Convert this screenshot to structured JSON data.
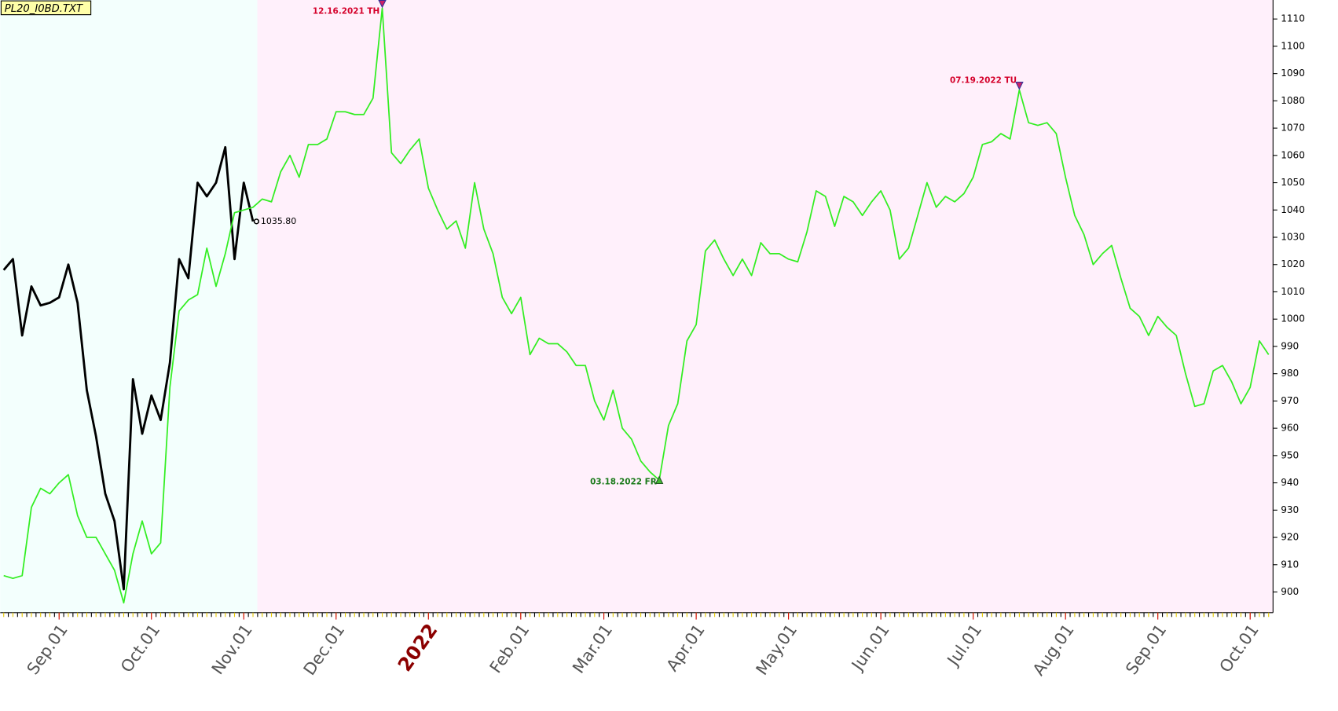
{
  "chart_data": {
    "type": "line",
    "title": "PL20_I0BD.TXT",
    "categories": [
      null,
      null,
      null,
      null,
      null,
      null,
      "Sep.01",
      null,
      null,
      null,
      null,
      null,
      null,
      null,
      null,
      null,
      "Oct.01",
      null,
      null,
      null,
      null,
      null,
      null,
      null,
      null,
      null,
      "Nov.01",
      null,
      null,
      null,
      null,
      null,
      null,
      null,
      null,
      null,
      "Dec.01",
      null,
      null,
      null,
      null,
      null,
      null,
      null,
      null,
      null,
      "2022",
      null,
      null,
      null,
      null,
      null,
      null,
      null,
      null,
      null,
      "Feb.01",
      null,
      null,
      null,
      null,
      null,
      null,
      null,
      null,
      "Mar.01",
      null,
      null,
      null,
      null,
      null,
      null,
      null,
      null,
      null,
      "Apr.01",
      null,
      null,
      null,
      null,
      null,
      null,
      null,
      null,
      null,
      "May.01",
      null,
      null,
      null,
      null,
      null,
      null,
      null,
      null,
      null,
      "Jun.01",
      null,
      null,
      null,
      null,
      null,
      null,
      null,
      null,
      null,
      "Jul.01",
      null,
      null,
      null,
      null,
      null,
      null,
      null,
      null,
      null,
      "Aug.01",
      null,
      null,
      null,
      null,
      null,
      null,
      null,
      null,
      null,
      "Sep.01",
      null,
      null,
      null,
      null,
      null,
      null,
      null,
      null,
      null,
      "Oct.01",
      null,
      null
    ],
    "year_label_color": "#8b0000",
    "series": [
      {
        "color": "#000000",
        "values": [
          1018,
          1022,
          994,
          1012,
          1005,
          1006,
          1008,
          1020,
          1006,
          974,
          957,
          936,
          926,
          901,
          978,
          958,
          972,
          963,
          984,
          1022,
          1015,
          1050,
          1045,
          1050,
          1063,
          1022,
          1050,
          1035.8,
          null,
          null,
          null,
          null,
          null,
          null,
          null,
          null,
          null,
          null,
          null,
          null,
          null,
          null,
          null,
          null,
          null,
          null,
          null,
          null,
          null,
          null,
          null,
          null,
          null,
          null,
          null,
          null,
          null,
          null,
          null,
          null,
          null,
          null,
          null,
          null,
          null,
          null,
          null,
          null,
          null,
          null,
          null,
          null,
          null,
          null,
          null,
          null,
          null,
          null,
          null,
          null,
          null,
          null,
          null,
          null,
          null,
          null,
          null,
          null,
          null,
          null,
          null,
          null,
          null,
          null,
          null,
          null,
          null,
          null,
          null,
          null,
          null,
          null,
          null,
          null,
          null,
          null,
          null,
          null,
          null,
          null,
          null,
          null,
          null,
          null,
          null,
          null,
          null,
          null,
          null,
          null,
          null,
          null,
          null,
          null,
          null,
          null,
          null,
          null,
          null,
          null,
          null,
          null,
          null,
          null,
          null,
          null,
          null,
          null
        ],
        "value_labels": [
          null,
          null,
          null,
          null,
          null,
          null,
          null,
          null,
          null,
          null,
          null,
          null,
          null,
          null,
          null,
          null,
          null,
          null,
          null,
          null,
          null,
          null,
          null,
          null,
          null,
          null,
          null,
          "1035.80",
          null,
          null,
          null,
          null,
          null,
          null,
          null,
          null,
          null,
          null,
          null,
          null,
          null,
          null,
          null,
          null,
          null,
          null,
          null,
          null,
          null,
          null,
          null,
          null,
          null,
          null,
          null,
          null,
          null,
          null,
          null,
          null,
          null,
          null,
          null,
          null,
          null,
          null,
          null,
          null,
          null,
          null,
          null,
          null,
          null,
          null,
          null,
          null,
          null,
          null,
          null,
          null,
          null,
          null,
          null,
          null,
          null,
          null,
          null,
          null,
          null,
          null,
          null,
          null,
          null,
          null,
          null,
          null,
          null,
          null,
          null,
          null,
          null,
          null,
          null,
          null,
          null,
          null,
          null,
          null,
          null,
          null,
          null,
          null,
          null,
          null,
          null,
          null,
          null,
          null,
          null,
          null,
          null,
          null,
          null,
          null,
          null,
          null,
          null,
          null,
          null,
          null,
          null,
          null,
          null,
          null,
          null,
          null,
          null,
          null
        ]
      },
      {
        "color": "#33ee22",
        "values": [
          906,
          905,
          906,
          931,
          938,
          936,
          940,
          943,
          928,
          920,
          920,
          914,
          908,
          896,
          914,
          926,
          914,
          918,
          975,
          1003,
          1007,
          1009,
          1026,
          1012,
          1024,
          1039,
          1040,
          1041,
          1044,
          1043,
          1054,
          1060,
          1052,
          1064,
          1064,
          1066,
          1076,
          1076,
          1075,
          1075,
          1081,
          1114,
          1061,
          1057,
          1062,
          1066,
          1048,
          1040,
          1033,
          1036,
          1026,
          1050,
          1033,
          1024,
          1008,
          1002,
          1008,
          987,
          993,
          991,
          991,
          988,
          983,
          983,
          970,
          963,
          974,
          960,
          956,
          948,
          944,
          941,
          961,
          969,
          992,
          998,
          1025,
          1029,
          1022,
          1016,
          1022,
          1016,
          1028,
          1024,
          1024,
          1022,
          1021,
          1032,
          1047,
          1045,
          1034,
          1045,
          1043,
          1038,
          1043,
          1047,
          1040,
          1022,
          1026,
          1038,
          1050,
          1041,
          1045,
          1043,
          1046,
          1052,
          1064,
          1065,
          1068,
          1066,
          1084,
          1072,
          1071,
          1072,
          1068,
          1052,
          1038,
          1031,
          1020,
          1024,
          1027,
          1015,
          1004,
          1001,
          994,
          1001,
          997,
          994,
          980,
          968,
          969,
          981,
          983,
          977,
          969,
          975,
          992,
          987
        ]
      }
    ],
    "annotations": [
      {
        "text": "12.16.2021 TH",
        "color": "#d4002a"
      },
      {
        "text": "03.18.2022 FR",
        "color": "#1a7a1a"
      },
      {
        "text": "07.19.2022 TU",
        "color": "#d4002a"
      }
    ],
    "ylim": [
      893,
      1115
    ],
    "yticks": [
      900,
      910,
      920,
      930,
      940,
      950,
      960,
      970,
      980,
      990,
      1000,
      1010,
      1020,
      1030,
      1040,
      1050,
      1060,
      1070,
      1080,
      1090,
      1100,
      1110
    ]
  }
}
